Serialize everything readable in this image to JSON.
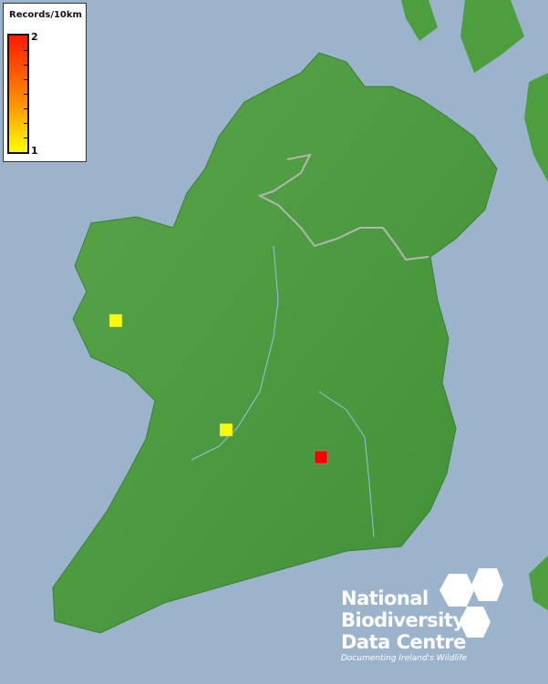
{
  "legend": {
    "title": "Records/10km",
    "max_label": "2",
    "min_label": "1",
    "color_max": "#ff0000",
    "color_min": "#ffff00"
  },
  "records": [
    {
      "value": 1,
      "color": "#ffff00"
    },
    {
      "value": 1,
      "color": "#ffff00"
    },
    {
      "value": 2,
      "color": "#ff0000"
    }
  ],
  "logo": {
    "line1": "National",
    "line2": "Biodiversity",
    "line3": "Data Centre",
    "tagline": "Documenting Ireland's Wildlife"
  },
  "colors": {
    "sea": "#9bb4cc",
    "land": "#4c9e3e"
  }
}
